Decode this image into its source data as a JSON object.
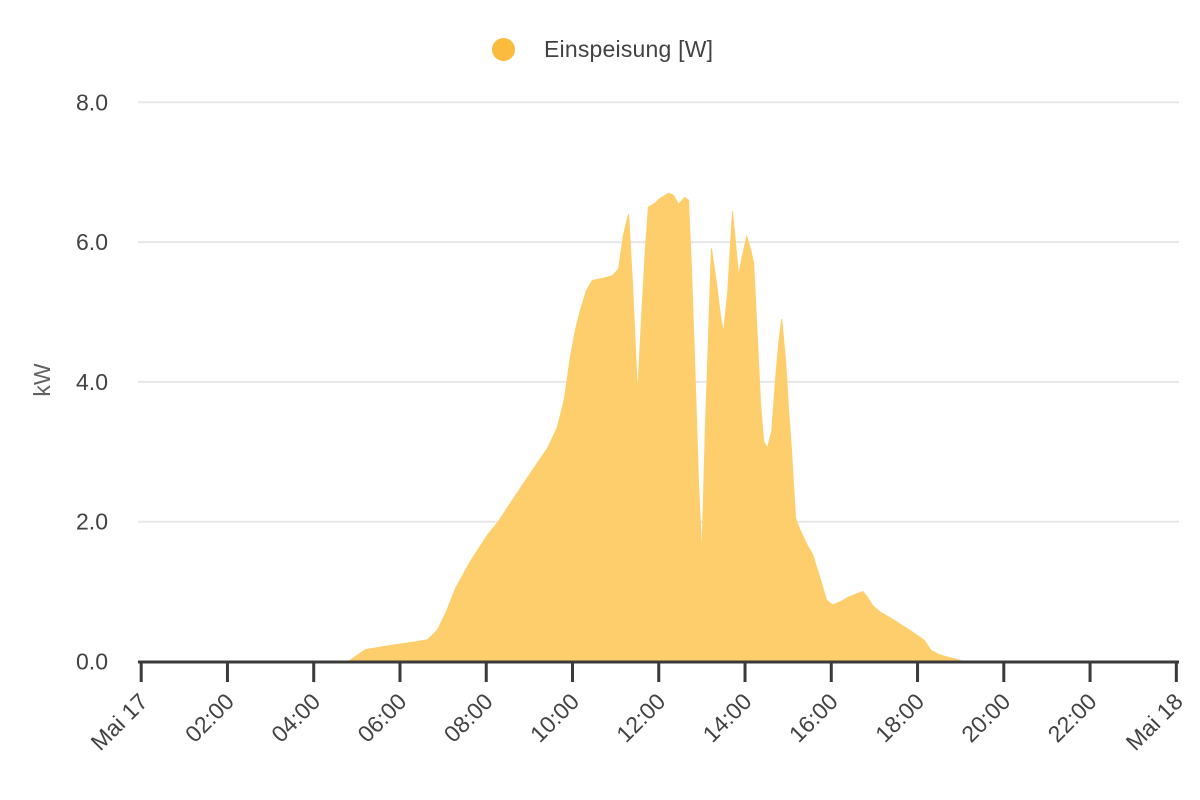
{
  "chart_data": {
    "type": "area",
    "title": "",
    "ylabel": "kW",
    "ylim": [
      0,
      8
    ],
    "xlim_hours": [
      0,
      24
    ],
    "grid": true,
    "legend_position": "top-center",
    "x_date_start": "Mai 17",
    "x_date_end": "Mai 18",
    "yticks": [
      {
        "value": 0,
        "label": "0.0"
      },
      {
        "value": 2,
        "label": "2.0"
      },
      {
        "value": 4,
        "label": "4.0"
      },
      {
        "value": 6,
        "label": "6.0"
      },
      {
        "value": 8,
        "label": "8.0"
      }
    ],
    "xticks": [
      {
        "hour": 0,
        "label": "Mai 17"
      },
      {
        "hour": 2,
        "label": "02:00"
      },
      {
        "hour": 4,
        "label": "04:00"
      },
      {
        "hour": 6,
        "label": "06:00"
      },
      {
        "hour": 8,
        "label": "08:00"
      },
      {
        "hour": 10,
        "label": "10:00"
      },
      {
        "hour": 12,
        "label": "12:00"
      },
      {
        "hour": 14,
        "label": "14:00"
      },
      {
        "hour": 16,
        "label": "16:00"
      },
      {
        "hour": 18,
        "label": "18:00"
      },
      {
        "hour": 20,
        "label": "20:00"
      },
      {
        "hour": 22,
        "label": "22:00"
      },
      {
        "hour": 24,
        "label": "Mai 18"
      }
    ],
    "colors": {
      "grid": "#E7E7E7",
      "axis": "#3A3A3A",
      "tick_label": "#424242",
      "axis_unit": "#616161"
    },
    "series": [
      {
        "name": "Einspeisung [W]",
        "color": "#FBBC3D",
        "fill": "#FDCE6B",
        "points_hour_kw": [
          [
            4.8,
            0.0
          ],
          [
            5.2,
            0.17
          ],
          [
            5.59,
            0.21
          ],
          [
            6.01,
            0.25
          ],
          [
            6.36,
            0.28
          ],
          [
            6.64,
            0.31
          ],
          [
            6.87,
            0.45
          ],
          [
            7.08,
            0.72
          ],
          [
            7.29,
            1.05
          ],
          [
            7.63,
            1.43
          ],
          [
            8.03,
            1.81
          ],
          [
            8.28,
            2.0
          ],
          [
            8.63,
            2.33
          ],
          [
            9.03,
            2.7
          ],
          [
            9.42,
            3.05
          ],
          [
            9.65,
            3.35
          ],
          [
            9.81,
            3.75
          ],
          [
            9.95,
            4.35
          ],
          [
            10.07,
            4.75
          ],
          [
            10.18,
            5.02
          ],
          [
            10.32,
            5.3
          ],
          [
            10.46,
            5.45
          ],
          [
            10.7,
            5.48
          ],
          [
            10.93,
            5.52
          ],
          [
            11.07,
            5.62
          ],
          [
            11.18,
            6.1
          ],
          [
            11.3,
            6.4
          ],
          [
            11.39,
            5.4
          ],
          [
            11.51,
            3.8
          ],
          [
            11.6,
            4.9
          ],
          [
            11.69,
            5.9
          ],
          [
            11.76,
            6.5
          ],
          [
            11.9,
            6.55
          ],
          [
            12.04,
            6.63
          ],
          [
            12.23,
            6.7
          ],
          [
            12.34,
            6.67
          ],
          [
            12.46,
            6.54
          ],
          [
            12.6,
            6.64
          ],
          [
            12.69,
            6.6
          ],
          [
            12.76,
            5.6
          ],
          [
            12.83,
            4.3
          ],
          [
            12.92,
            2.6
          ],
          [
            13.0,
            1.5
          ],
          [
            13.08,
            3.3
          ],
          [
            13.15,
            4.6
          ],
          [
            13.22,
            5.91
          ],
          [
            13.34,
            5.4
          ],
          [
            13.43,
            4.95
          ],
          [
            13.5,
            4.7
          ],
          [
            13.6,
            5.3
          ],
          [
            13.71,
            6.44
          ],
          [
            13.85,
            5.52
          ],
          [
            13.94,
            5.8
          ],
          [
            14.04,
            6.08
          ],
          [
            14.13,
            5.9
          ],
          [
            14.2,
            5.7
          ],
          [
            14.29,
            4.6
          ],
          [
            14.36,
            3.7
          ],
          [
            14.43,
            3.15
          ],
          [
            14.52,
            3.05
          ],
          [
            14.62,
            3.3
          ],
          [
            14.71,
            4.05
          ],
          [
            14.78,
            4.55
          ],
          [
            14.85,
            4.9
          ],
          [
            14.94,
            4.3
          ],
          [
            15.01,
            3.6
          ],
          [
            15.08,
            3.0
          ],
          [
            15.17,
            2.05
          ],
          [
            15.29,
            1.86
          ],
          [
            15.43,
            1.68
          ],
          [
            15.57,
            1.53
          ],
          [
            15.75,
            1.17
          ],
          [
            15.89,
            0.88
          ],
          [
            16.03,
            0.81
          ],
          [
            16.22,
            0.86
          ],
          [
            16.4,
            0.92
          ],
          [
            16.59,
            0.97
          ],
          [
            16.73,
            1.0
          ],
          [
            16.84,
            0.92
          ],
          [
            16.96,
            0.8
          ],
          [
            17.15,
            0.7
          ],
          [
            17.38,
            0.62
          ],
          [
            17.61,
            0.53
          ],
          [
            17.84,
            0.44
          ],
          [
            18.0,
            0.37
          ],
          [
            18.16,
            0.3
          ],
          [
            18.31,
            0.16
          ],
          [
            18.49,
            0.1
          ],
          [
            18.72,
            0.06
          ],
          [
            18.91,
            0.03
          ],
          [
            19.07,
            0.0
          ]
        ]
      }
    ]
  }
}
